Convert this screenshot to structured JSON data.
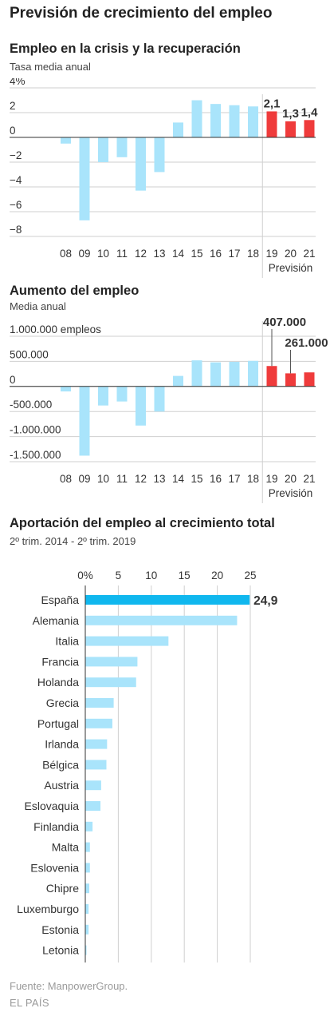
{
  "page": {
    "title": "Previsión de crecimiento del empleo",
    "source": "Fuente: ManpowerGroup.",
    "brand": "EL PAÍS"
  },
  "colors": {
    "observed": "#a9e4fb",
    "forecast": "#ef3b3b",
    "highlight": "#10b7ee",
    "gridline": "#cfcfcf",
    "axis": "#333333"
  },
  "chart_data": [
    {
      "type": "bar",
      "title": "Empleo en la crisis y la recuperación",
      "subtitle": "Tasa media anual",
      "categories": [
        "08",
        "09",
        "10",
        "11",
        "12",
        "13",
        "14",
        "15",
        "16",
        "17",
        "18",
        "19",
        "20",
        "21"
      ],
      "values": [
        -0.5,
        -6.7,
        -2.0,
        -1.6,
        -4.3,
        -2.8,
        1.2,
        3.0,
        2.7,
        2.6,
        2.5,
        2.1,
        1.3,
        1.4
      ],
      "forecast_from": "19",
      "forecast_label": "Previsión",
      "y_ticks": [
        4,
        2,
        0,
        -2,
        -4,
        -6,
        -8
      ],
      "y_tick_labels": [
        "4%",
        "2",
        "0",
        "−2",
        "−4",
        "−6",
        "−8"
      ],
      "ylim": [
        -8,
        4
      ],
      "data_labels": [
        {
          "category": "19",
          "text": "2,1"
        },
        {
          "category": "20",
          "text": "1,3"
        },
        {
          "category": "21",
          "text": "1,4"
        }
      ],
      "grid": true
    },
    {
      "type": "bar",
      "title": "Aumento del empleo",
      "subtitle": "Media anual",
      "categories": [
        "08",
        "09",
        "10",
        "11",
        "12",
        "13",
        "14",
        "15",
        "16",
        "17",
        "18",
        "19",
        "20",
        "21"
      ],
      "values": [
        -100000,
        -1380000,
        -380000,
        -300000,
        -780000,
        -500000,
        210000,
        520000,
        480000,
        490000,
        510000,
        407000,
        261000,
        280000
      ],
      "forecast_from": "19",
      "forecast_label": "Previsión",
      "y_ticks": [
        1000000,
        500000,
        0,
        -500000,
        -1000000,
        -1500000
      ],
      "y_tick_labels": [
        "1.000.000 empleos",
        "500.000",
        "0",
        "-500.000",
        "-1.000.000",
        "-1.500.000"
      ],
      "ylim": [
        -1500000,
        1000000
      ],
      "data_labels": [
        {
          "category": "19",
          "text": "407.000"
        },
        {
          "category": "20",
          "text": "261.000"
        }
      ],
      "grid": true
    },
    {
      "type": "bar",
      "orientation": "horizontal",
      "title": "Aportación del empleo al crecimiento total",
      "subtitle": "2º trim. 2014 - 2º trim. 2019",
      "categories": [
        "España",
        "Alemania",
        "Italia",
        "Francia",
        "Holanda",
        "Grecia",
        "Portugal",
        "Irlanda",
        "Bélgica",
        "Austria",
        "Eslovaquia",
        "Finlandia",
        "Malta",
        "Eslovenia",
        "Chipre",
        "Luxemburgo",
        "Estonia",
        "Letonia"
      ],
      "values": [
        24.9,
        23.0,
        12.6,
        7.9,
        7.7,
        4.3,
        4.1,
        3.3,
        3.2,
        2.4,
        2.3,
        1.1,
        0.7,
        0.7,
        0.6,
        0.5,
        0.5,
        0.1
      ],
      "highlight": "España",
      "x_ticks": [
        0,
        5,
        10,
        15,
        20,
        25
      ],
      "x_tick_labels": [
        "0%",
        "5",
        "10",
        "15",
        "20",
        "25"
      ],
      "xlim": [
        0,
        25
      ],
      "data_labels": [
        {
          "category": "España",
          "text": "24,9"
        }
      ],
      "grid": true
    }
  ]
}
